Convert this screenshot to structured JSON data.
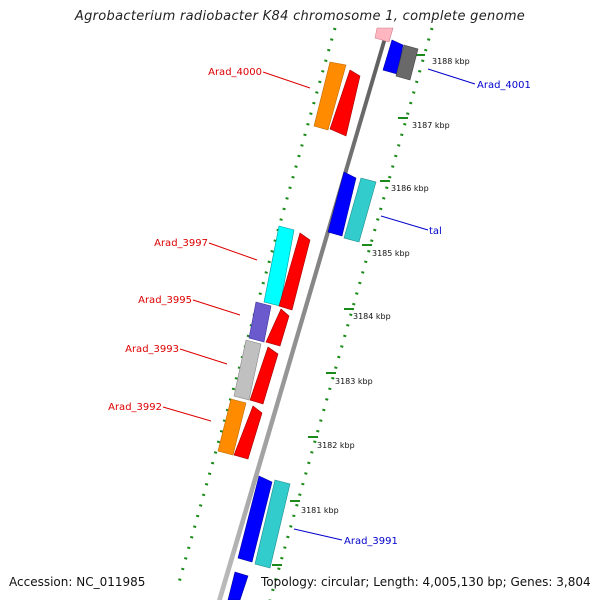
{
  "title": "Agrobacterium radiobacter K84 chromosome 1, complete genome",
  "footer": {
    "accession": "Accession: NC_011985",
    "topology": "Topology: circular; Length: 4,005,130 bp; Genes: 3,804"
  },
  "colors": {
    "background": "#ffffff",
    "backbone": "#8c8c8c",
    "dotted_track": "#1a8a1a",
    "left_gene_label": "#dd0000",
    "right_gene_label": "#0000cc",
    "orange": "#ff8c00",
    "red": "#ff0000",
    "cyan": "#00ffff",
    "teal": "#33cccc",
    "blue": "#0000ff",
    "slate_blue": "#6a5acd",
    "silver": "#c0c0c0",
    "gray": "#696969"
  },
  "ticks": [
    "3188 kbp",
    "3187 kbp",
    "3186 kbp",
    "3185 kbp",
    "3184 kbp",
    "3183 kbp",
    "3182 kbp",
    "3181 kbp"
  ],
  "left_labels": [
    "Arad_4000",
    "Arad_3997",
    "Arad_3995",
    "Arad_3993",
    "Arad_3992"
  ],
  "right_labels": [
    "Arad_4001",
    "tal",
    "Arad_3991"
  ]
}
